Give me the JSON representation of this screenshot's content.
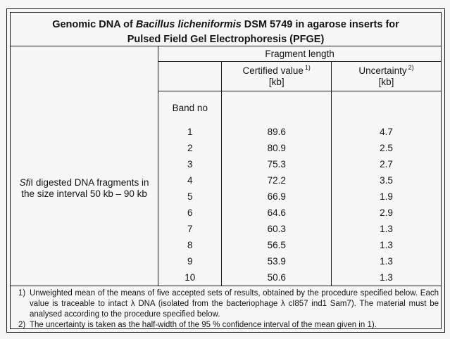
{
  "title": {
    "line1_prefix": "Genomic DNA of ",
    "line1_species": "Bacillus licheniformis",
    "line1_suffix": " DSM 5749 in agarose inserts for",
    "line2": "Pulsed Field Gel Electrophoresis (PFGE)"
  },
  "columns": {
    "group_header": "Fragment length",
    "certified_label": "Certified value",
    "certified_footnote_ref": "1)",
    "certified_unit": "[kb]",
    "uncertainty_label": "Uncertainty",
    "uncertainty_footnote_ref": "2)",
    "uncertainty_unit": "[kb]"
  },
  "row_group": {
    "label_italic": "Sfi",
    "label_line1_rest": "I digested DNA fragments in",
    "label_line2": "the size interval 50 kb – 90 kb",
    "band_header": "Band no"
  },
  "rows": [
    {
      "band": "1",
      "value": "89.6",
      "uncertainty": "4.7"
    },
    {
      "band": "2",
      "value": "80.9",
      "uncertainty": "2.5"
    },
    {
      "band": "3",
      "value": "75.3",
      "uncertainty": "2.7"
    },
    {
      "band": "4",
      "value": "72.2",
      "uncertainty": "3.5"
    },
    {
      "band": "5",
      "value": "66.9",
      "uncertainty": "1.9"
    },
    {
      "band": "6",
      "value": "64.6",
      "uncertainty": "2.9"
    },
    {
      "band": "7",
      "value": "60.3",
      "uncertainty": "1.3"
    },
    {
      "band": "8",
      "value": "56.5",
      "uncertainty": "1.3"
    },
    {
      "band": "9",
      "value": "53.9",
      "uncertainty": "1.3"
    },
    {
      "band": "10",
      "value": "50.6",
      "uncertainty": "1.3"
    }
  ],
  "footnotes": [
    {
      "marker": "1)",
      "text": "Unweighted mean of the means of five accepted sets of results, obtained by the procedure specified below. Each value is traceable to intact λ DNA (isolated from the bacteriophage λ cI857 ind1 Sam7). The material must be analysed according to the procedure specified below."
    },
    {
      "marker": "2)",
      "text": "The uncertainty is taken as the half-width of the 95 % confidence interval of the mean given in 1)."
    }
  ],
  "colors": {
    "background": "#f7f7f7",
    "border": "#1a1a1a",
    "text": "#141414"
  }
}
